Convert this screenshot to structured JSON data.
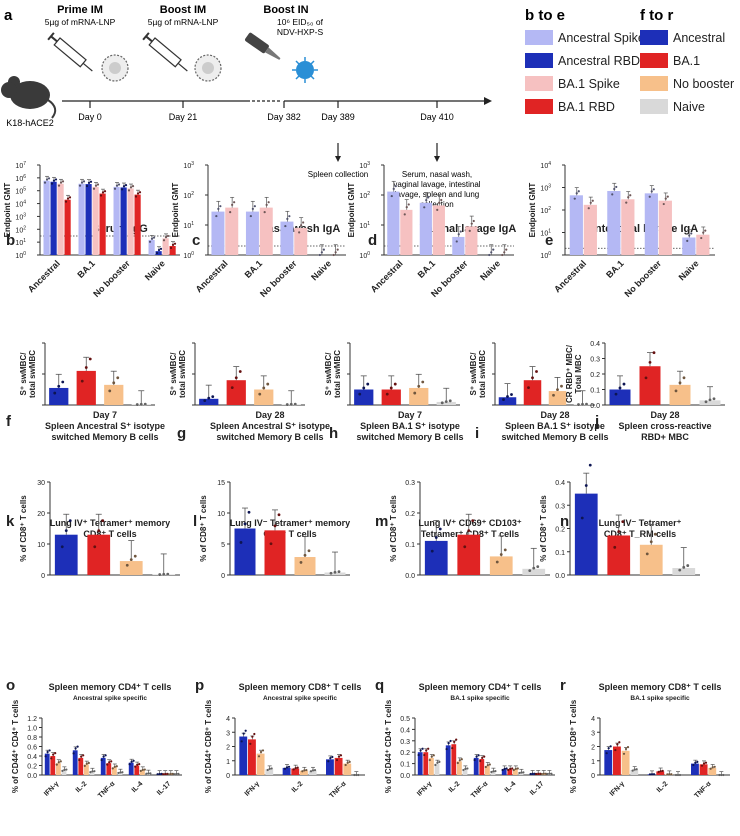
{
  "panel_letters": [
    "a",
    "b",
    "c",
    "d",
    "e",
    "f",
    "g",
    "h",
    "i",
    "j",
    "k",
    "l",
    "m",
    "n",
    "o",
    "p",
    "q",
    "r"
  ],
  "timeline": {
    "prime_title": "Prime IM",
    "prime_dose": "5µg of mRNA-LNP",
    "boost_title": "Boost IM",
    "boost_dose": "5µg of mRNA-LNP",
    "boostin_title": "Boost IN",
    "boostin_dose1": "10⁶ EID₅₀ of",
    "boostin_dose2": "NDV-HXP-S",
    "mouse_label": "K18-hACE2",
    "days": [
      "Day 0",
      "Day 21",
      "Day 382",
      "Day 389",
      "Day 410"
    ],
    "spleen_note": "Spleen collection",
    "final_note": [
      "Serum, nasal wash,",
      "vaginal lavage, intestinal",
      "lavage, spleen and lung",
      "collection"
    ]
  },
  "legend": {
    "be_title": "b to e",
    "be_items": [
      {
        "label": "Ancestral Spike",
        "color": "#b4b8f4"
      },
      {
        "label": "Ancestral RBD",
        "color": "#1d2fb8"
      },
      {
        "label": "BA.1 Spike",
        "color": "#f6c1c1"
      },
      {
        "label": "BA.1 RBD",
        "color": "#e02424"
      }
    ],
    "fr_title": "f to r",
    "fr_items": [
      {
        "label": "Ancestral",
        "color": "#1d2fb8"
      },
      {
        "label": "BA.1",
        "color": "#e02424"
      },
      {
        "label": "No booster",
        "color": "#f7c08a"
      },
      {
        "label": "Naive",
        "color": "#d9d9d9"
      }
    ]
  },
  "chart_data": [
    {
      "id": "b",
      "type": "bar",
      "title": "Serum IgG",
      "ylabel": "Endpoint GMT",
      "yscale": "log",
      "ylim": [
        1,
        10000000
      ],
      "categories": [
        "Ancestral",
        "BA.1",
        "No booster",
        "Naive"
      ],
      "series": [
        {
          "name": "Ancestral Spike",
          "values": [
            600000,
            350000,
            200000,
            15
          ]
        },
        {
          "name": "Ancestral RBD",
          "values": [
            500000,
            330000,
            180000,
            2
          ]
        },
        {
          "name": "BA.1 Spike",
          "values": [
            350000,
            200000,
            150000,
            20
          ]
        },
        {
          "name": "BA.1 RBD",
          "values": [
            20000,
            60000,
            50000,
            5
          ]
        }
      ]
    },
    {
      "id": "c",
      "type": "bar",
      "title": "Nasal wash IgA",
      "ylabel": "Endpoint GMT",
      "yscale": "log",
      "ylim": [
        1,
        1000
      ],
      "categories": [
        "Ancestral",
        "BA.1",
        "No booster",
        "Naive"
      ],
      "series": [
        {
          "name": "Ancestral Spike",
          "values": [
            28,
            28,
            13,
            1
          ]
        },
        {
          "name": "BA.1 Spike",
          "values": [
            38,
            38,
            8,
            1
          ]
        }
      ]
    },
    {
      "id": "d",
      "type": "bar",
      "title": "Vaginal lavage IgA",
      "ylabel": "Endpoint GMT",
      "yscale": "log",
      "ylim": [
        1,
        1000
      ],
      "categories": [
        "Ancestral",
        "BA.1",
        "No booster",
        "Naive"
      ],
      "series": [
        {
          "name": "Ancestral Spike",
          "values": [
            130,
            55,
            4,
            1
          ]
        },
        {
          "name": "BA.1 Spike",
          "values": [
            32,
            45,
            9,
            1
          ]
        }
      ]
    },
    {
      "id": "e",
      "type": "bar",
      "title": "Intestinal lavage IgA",
      "ylabel": "Endpoint GMT",
      "yscale": "log",
      "ylim": [
        1,
        10000
      ],
      "categories": [
        "Ancestral",
        "BA.1",
        "No booster",
        "Naive"
      ],
      "series": [
        {
          "name": "Ancestral Spike",
          "values": [
            450,
            700,
            550,
            6
          ]
        },
        {
          "name": "BA.1 Spike",
          "values": [
            170,
            300,
            260,
            8
          ]
        }
      ]
    },
    {
      "id": "f",
      "type": "bar",
      "title": "Day 7\nSpleen Ancestral S⁺ isotype\nswitched Memory B cells",
      "ylabel": "S⁺ swMBC/\ntotal swMBC",
      "ylim": [
        0,
        2
      ],
      "categories": [
        "Ancestral",
        "BA.1",
        "No booster",
        "Naive"
      ],
      "values": [
        0.55,
        1.1,
        0.65,
        0.02
      ]
    },
    {
      "id": "g",
      "type": "bar",
      "title": "Day 28\nSpleen Ancestral S⁺ isotype\nswitched Memory B cells",
      "ylabel": "S⁺ swMBC/\ntotal swMBC",
      "ylim": [
        0,
        2
      ],
      "categories": [
        "Ancestral",
        "BA.1",
        "No booster",
        "Naive"
      ],
      "values": [
        0.2,
        0.8,
        0.5,
        0.02
      ]
    },
    {
      "id": "h",
      "type": "bar",
      "title": "Day 7\nSpleen BA.1 S⁺ isotype\nswitched Memory B cells",
      "ylabel": "S⁺ swMBC/\ntotal swMBC",
      "ylim": [
        0,
        2
      ],
      "categories": [
        "Ancestral",
        "BA.1",
        "No booster",
        "Naive"
      ],
      "values": [
        0.5,
        0.5,
        0.55,
        0.1
      ]
    },
    {
      "id": "i",
      "type": "bar",
      "title": "Day 28\nSpleen BA.1 S⁺ isotype\nswitched Memory B cells",
      "ylabel": "S⁺ swMBC/\ntotal swMBC",
      "ylim": [
        0,
        2
      ],
      "categories": [
        "Ancestral",
        "BA.1",
        "No booster",
        "Naive"
      ],
      "values": [
        0.25,
        0.8,
        0.45,
        0.02
      ]
    },
    {
      "id": "j",
      "type": "bar",
      "title": "Day 28\nSpleen cross-reactive\nRBD+ MBC",
      "ylabel": "CR RBD⁺ MBC/\nTotal MBC",
      "ylim": [
        0,
        0.4
      ],
      "yticks": [
        "0.0",
        "0.1",
        "0.2",
        "0.3",
        "0.4"
      ],
      "categories": [
        "Ancestral",
        "BA.1",
        "No booster",
        "Naive"
      ],
      "values": [
        0.1,
        0.25,
        0.13,
        0.03
      ]
    },
    {
      "id": "k",
      "type": "bar",
      "title": "Lung IV⁺ Tetramer⁺ memory\nCD8⁺ T cells",
      "ylabel": "% of CD8⁺ T cells",
      "ylim": [
        0,
        30
      ],
      "yticks": [
        "0",
        "10",
        "20",
        "30"
      ],
      "categories": [
        "Ancestral",
        "BA.1",
        "No booster",
        "Naive"
      ],
      "values": [
        13,
        13,
        4.5,
        0.2
      ]
    },
    {
      "id": "l",
      "type": "bar",
      "title": "Lung IV⁻ Tetramer⁺ memory\nCD8⁺ T cells",
      "ylabel": "% of CD8⁺ T cells",
      "ylim": [
        0,
        15
      ],
      "yticks": [
        "0",
        "5",
        "10",
        "15"
      ],
      "categories": [
        "Ancestral",
        "BA.1",
        "No booster",
        "Naive"
      ],
      "values": [
        7.5,
        7.2,
        2.9,
        0.4
      ]
    },
    {
      "id": "m",
      "type": "bar",
      "title": "Lung IV⁺ CD69⁺ CD103⁺\nTetramer⁺ CD8⁺ T cells",
      "ylabel": "% of CD8⁺ T cells",
      "ylim": [
        0,
        0.3
      ],
      "yticks": [
        "0.0",
        "0.1",
        "0.2",
        "0.3"
      ],
      "categories": [
        "Ancestral",
        "BA.1",
        "No booster",
        "Naive"
      ],
      "values": [
        0.11,
        0.13,
        0.06,
        0.02
      ]
    },
    {
      "id": "n",
      "type": "bar",
      "title": "Lung IV⁻ Tetramer⁺\nCD8⁺ T_RM cells",
      "ylabel": "% of CD8⁺ T cells",
      "ylim": [
        0,
        0.4
      ],
      "yticks": [
        "0.0",
        "0.1",
        "0.2",
        "0.3",
        "0.4"
      ],
      "categories": [
        "Ancestral",
        "BA.1",
        "No booster",
        "Naive"
      ],
      "values": [
        0.35,
        0.17,
        0.13,
        0.03
      ]
    },
    {
      "id": "o",
      "type": "bar",
      "title": "Spleen memory CD4⁺ T cells",
      "subtitle": "Ancestral spike specific",
      "ylabel": "% of CD44⁺ CD4⁺ T cells",
      "ylim": [
        0,
        1.2
      ],
      "yticks": [
        "0.0",
        "0.2",
        "0.4",
        "0.6",
        "0.8",
        "1.0",
        "1.2"
      ],
      "categories": [
        "IFN-γ",
        "IL-2",
        "TNF-α",
        "IL-4",
        "IL-17"
      ],
      "series": [
        {
          "name": "Ancestral",
          "values": [
            0.45,
            0.52,
            0.36,
            0.26,
            0.02
          ]
        },
        {
          "name": "BA.1",
          "values": [
            0.4,
            0.36,
            0.25,
            0.2,
            0.02
          ]
        },
        {
          "name": "No booster",
          "values": [
            0.25,
            0.22,
            0.16,
            0.1,
            0.02
          ]
        },
        {
          "name": "Naive",
          "values": [
            0.1,
            0.07,
            0.05,
            0.03,
            0.02
          ]
        }
      ]
    },
    {
      "id": "p",
      "type": "bar",
      "title": "Spleen memory CD8⁺ T cells",
      "subtitle": "Ancestral spike specific",
      "ylabel": "% of CD44⁺ CD8⁺ T cells",
      "ylim": [
        0,
        4
      ],
      "yticks": [
        "0",
        "1",
        "2",
        "3",
        "4"
      ],
      "categories": [
        "IFN-γ",
        "IL-2",
        "TNF-α"
      ],
      "series": [
        {
          "name": "Ancestral",
          "values": [
            2.7,
            0.5,
            1.1
          ]
        },
        {
          "name": "BA.1",
          "values": [
            2.5,
            0.45,
            1.2
          ]
        },
        {
          "name": "No booster",
          "values": [
            1.5,
            0.3,
            0.8
          ]
        },
        {
          "name": "Naive",
          "values": [
            0.4,
            0.3,
            0.0
          ]
        }
      ]
    },
    {
      "id": "q",
      "type": "bar",
      "title": "Spleen memory CD4⁺ T cells",
      "subtitle": "BA.1 spike specific",
      "ylabel": "% of CD44⁺ CD4⁺ T cells",
      "ylim": [
        0,
        0.5
      ],
      "yticks": [
        "0.0",
        "0.1",
        "0.2",
        "0.3",
        "0.4",
        "0.5"
      ],
      "categories": [
        "IFN-γ",
        "IL-2",
        "TNF-α",
        "IL-4",
        "IL-17"
      ],
      "series": [
        {
          "name": "Ancestral",
          "values": [
            0.2,
            0.26,
            0.15,
            0.05,
            0.01
          ]
        },
        {
          "name": "BA.1",
          "values": [
            0.2,
            0.27,
            0.14,
            0.05,
            0.01
          ]
        },
        {
          "name": "No booster",
          "values": [
            0.15,
            0.12,
            0.08,
            0.05,
            0.01
          ]
        },
        {
          "name": "Naive",
          "values": [
            0.1,
            0.05,
            0.03,
            0.02,
            0.01
          ]
        }
      ]
    },
    {
      "id": "r",
      "type": "bar",
      "title": "Spleen memory CD8⁺ T cells",
      "subtitle": "BA.1 spike specific",
      "ylabel": "% of CD44⁺ CD8⁺ T cells",
      "ylim": [
        0,
        4
      ],
      "yticks": [
        "0",
        "1",
        "2",
        "3",
        "4"
      ],
      "categories": [
        "IFN-γ",
        "IL-2",
        "TNF-α"
      ],
      "series": [
        {
          "name": "Ancestral",
          "values": [
            1.75,
            0.05,
            0.8
          ]
        },
        {
          "name": "BA.1",
          "values": [
            2.0,
            0.25,
            0.75
          ]
        },
        {
          "name": "No booster",
          "values": [
            1.7,
            0.05,
            0.5
          ]
        },
        {
          "name": "Naive",
          "values": [
            0.35,
            0.0,
            0.0
          ]
        }
      ]
    }
  ]
}
